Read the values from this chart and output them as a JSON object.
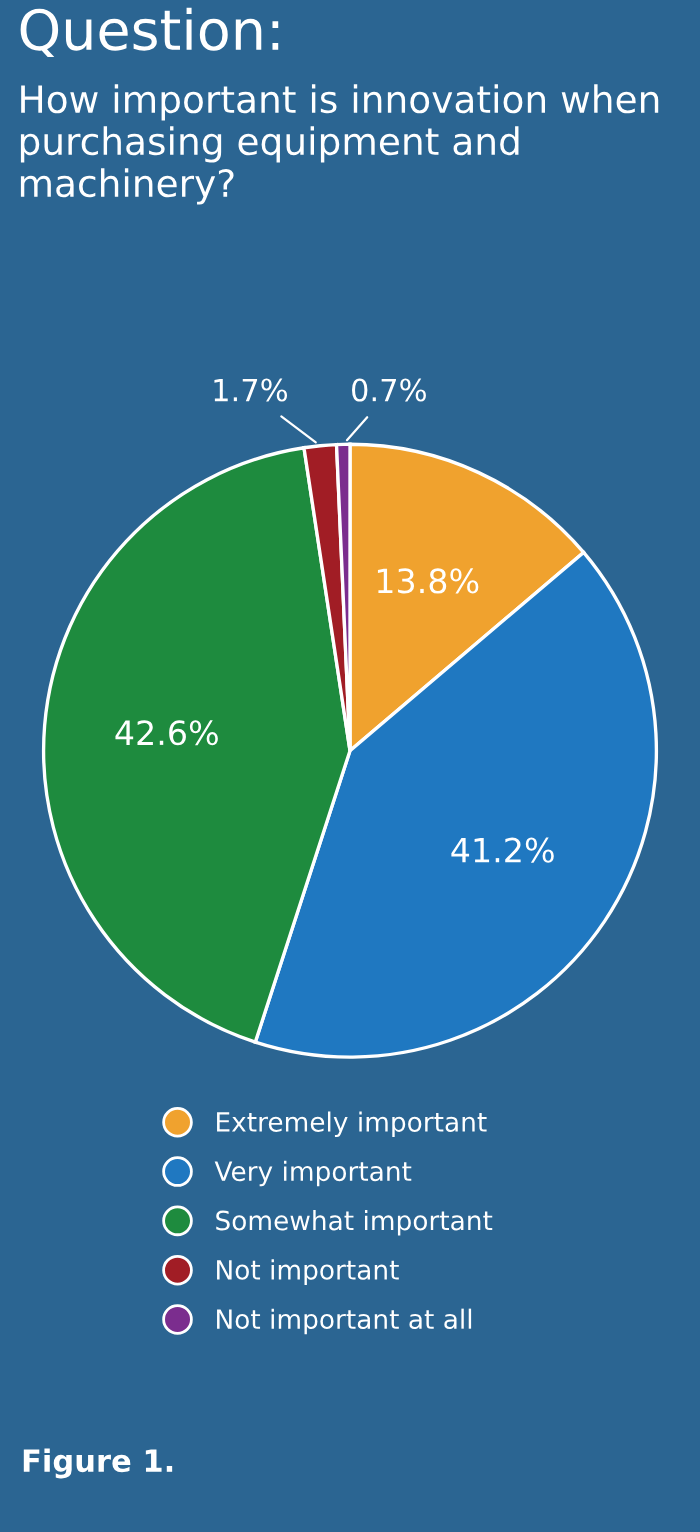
{
  "chart_data": {
    "type": "pie",
    "title": "Question:",
    "subtitle": "How important is innovation when purchasing equipment and machinery?",
    "categories": [
      "Extremely important",
      "Very important",
      "Somewhat important",
      "Not important",
      "Not important at all"
    ],
    "values": [
      13.8,
      41.2,
      42.6,
      1.7,
      0.7
    ],
    "colors": [
      "#f0a22e",
      "#1f78c1",
      "#1e8b3e",
      "#a11d25",
      "#7b2d8e"
    ],
    "value_labels": [
      "13.8%",
      "41.2%",
      "42.6%",
      "1.7%",
      "0.7%"
    ],
    "legend": "bottom",
    "annotations": [
      "Figure 1."
    ]
  }
}
